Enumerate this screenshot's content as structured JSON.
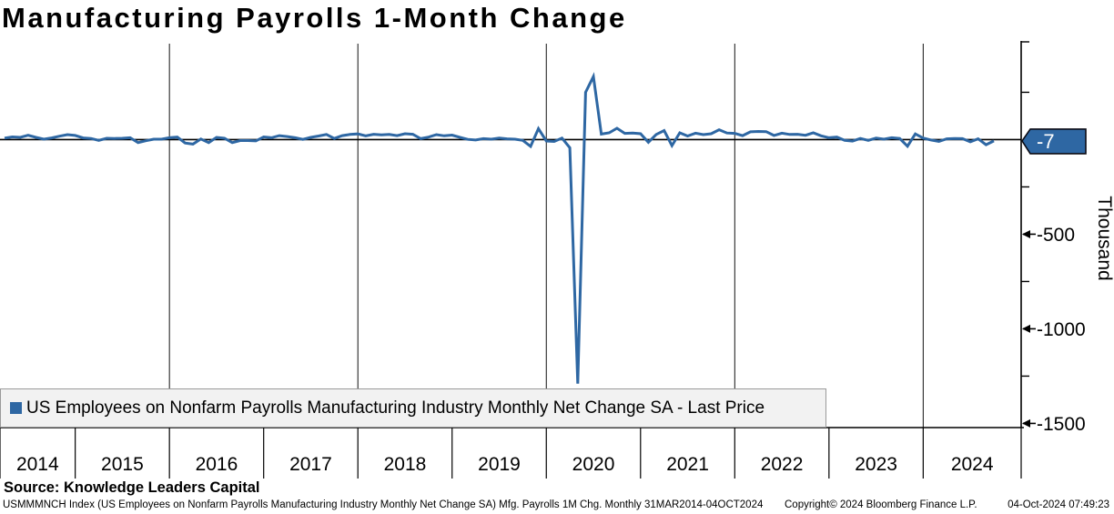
{
  "title": "Manufacturing Payrolls 1-Month Change",
  "legend": {
    "label": "US Employees on Nonfarm Payrolls Manufacturing Industry Monthly Net Change SA - Last Price",
    "swatch_color": "#2E67A3"
  },
  "footer": {
    "source": "Source: Knowledge Leaders Capital",
    "description": "USMMMNCH Index (US Employees on Nonfarm Payrolls Manufacturing Industry Monthly Net Change SA) Mfg. Payrolls 1M Chg.  Monthly 31MAR2014-04OCT2024",
    "copyright": "Copyright© 2024 Bloomberg Finance L.P.",
    "datetime": "04-Oct-2024 07:49:23"
  },
  "chart_data": {
    "type": "line",
    "title": "Manufacturing Payrolls 1-Month Change",
    "xlabel": "",
    "ylabel": "Thousand",
    "ylim": [
      -1522,
      507
    ],
    "grid": "vertical-gridlines-every-2-years",
    "legend_position": "bottom-left-inside",
    "x_year_labels": [
      "2014",
      "2015",
      "2016",
      "2017",
      "2018",
      "2019",
      "2020",
      "2021",
      "2022",
      "2023",
      "2024"
    ],
    "x_gridline_years": [
      2016,
      2018,
      2020,
      2022,
      2024
    ],
    "yticks": [
      {
        "value": -500,
        "label": "-500"
      },
      {
        "value": -1000,
        "label": "-1000"
      },
      {
        "value": -1500,
        "label": "-1500"
      }
    ],
    "yticks_minor": [
      250,
      -250,
      -750,
      -1250
    ],
    "last_price": {
      "value": -7,
      "label": "-7"
    },
    "line_color": "#2E67A3",
    "series": [
      {
        "name": "US Employees on Nonfarm Payrolls Manufacturing Industry Monthly Net Change SA - Last Price",
        "color": "#2E67A3",
        "frequency": "monthly",
        "start_month": "2014-03",
        "end_month": "2024-09",
        "values": [
          8,
          14,
          12,
          23,
          12,
          2,
          9,
          18,
          26,
          22,
          9,
          6,
          -4,
          7,
          6,
          7,
          10,
          -16,
          -6,
          2,
          2,
          10,
          13,
          -18,
          -24,
          3,
          -16,
          12,
          7,
          -16,
          -5,
          -5,
          -7,
          14,
          10,
          21,
          16,
          10,
          1,
          12,
          19,
          27,
          6,
          21,
          27,
          30,
          20,
          28,
          25,
          27,
          21,
          31,
          28,
          5,
          13,
          26,
          20,
          24,
          12,
          1,
          -2,
          5,
          2,
          8,
          4,
          2,
          -4,
          -36,
          58,
          -8,
          -10,
          8,
          -43,
          -1290,
          250,
          333,
          29,
          36,
          60,
          33,
          35,
          31,
          -14,
          27,
          48,
          -32,
          36,
          19,
          34,
          26,
          31,
          52,
          35,
          33,
          21,
          41,
          43,
          42,
          22,
          34,
          27,
          28,
          23,
          36,
          20,
          10,
          13,
          -4,
          -8,
          6,
          -4,
          8,
          2,
          10,
          6,
          -35,
          30,
          8,
          -2,
          -10,
          4,
          6,
          5,
          -12,
          4,
          -27,
          -7
        ]
      }
    ]
  }
}
